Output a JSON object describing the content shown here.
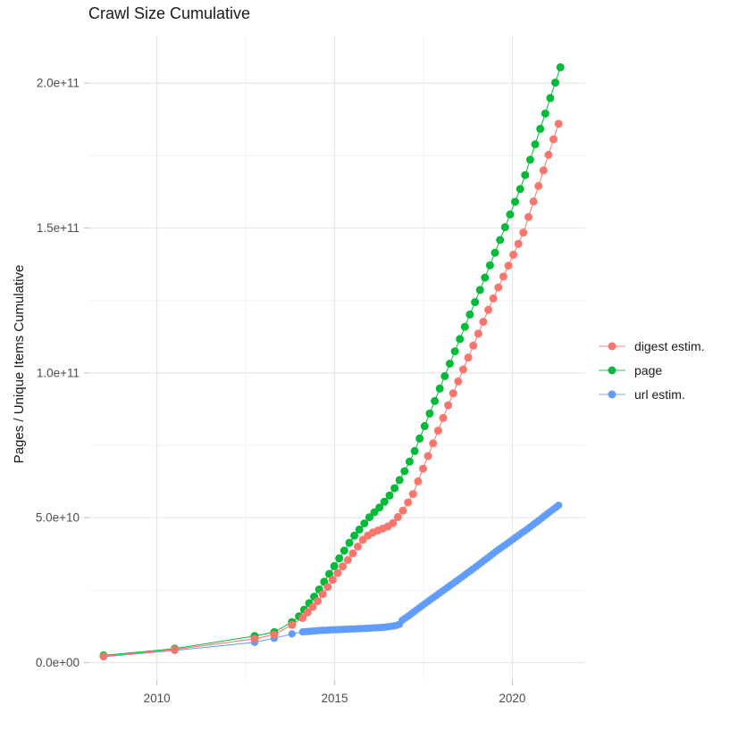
{
  "chart_data": {
    "type": "scatter",
    "title": "Crawl Size Cumulative",
    "xlabel": "",
    "ylabel": "Pages / Unique Items Cumulative",
    "legend_position": "right",
    "grid": {
      "major_color": "#e7e7e7",
      "minor_color": "#f3f3f3",
      "tick_color": "#c9c9c9",
      "minor_x_years": [
        2012.5,
        2017.5
      ],
      "minor_y_values_e9": [
        25,
        75,
        125,
        175
      ]
    },
    "x_ticks": [
      {
        "label": "2010",
        "year": 2010
      },
      {
        "label": "2015",
        "year": 2015
      },
      {
        "label": "2020",
        "year": 2020
      }
    ],
    "y_ticks": [
      {
        "label": "0.0e+00",
        "value_e9": 0
      },
      {
        "label": "5.0e+10",
        "value_e9": 50
      },
      {
        "label": "1.0e+11",
        "value_e9": 100
      },
      {
        "label": "1.5e+11",
        "value_e9": 150
      },
      {
        "label": "2.0e+11",
        "value_e9": 200
      }
    ],
    "x_domain_years": [
      2008.1,
      2022.05
    ],
    "y_domain_e9": [
      -6,
      216.4
    ],
    "series": [
      {
        "name": "url estim.",
        "color": "#619CFF",
        "marker_radius": 4.1,
        "marker_step_years": 0.08,
        "early_points_year_value_e9": [
          [
            2008.5,
            2.0
          ],
          [
            2010.5,
            4.2
          ],
          [
            2012.75,
            7.0
          ],
          [
            2013.3,
            8.4
          ],
          [
            2013.8,
            9.9
          ]
        ],
        "trend_points_year_value_e9": [
          [
            2014.1,
            10.6
          ],
          [
            2014.5,
            11.0
          ],
          [
            2015.0,
            11.35
          ],
          [
            2015.5,
            11.6
          ],
          [
            2016.0,
            11.9
          ],
          [
            2016.4,
            12.2
          ],
          [
            2016.7,
            12.7
          ],
          [
            2016.82,
            13.2
          ],
          [
            2016.9,
            14.6
          ],
          [
            2017.1,
            16.3
          ],
          [
            2017.5,
            20.0
          ],
          [
            2018.0,
            24.4
          ],
          [
            2018.5,
            28.8
          ],
          [
            2019.0,
            33.3
          ],
          [
            2019.5,
            38.0
          ],
          [
            2020.0,
            42.4
          ],
          [
            2020.5,
            46.8
          ],
          [
            2021.0,
            51.5
          ],
          [
            2021.3,
            54.3
          ]
        ]
      },
      {
        "name": "page",
        "color": "#00BA38",
        "marker_radius": 4.5,
        "marker_step_years": 0.14,
        "early_points_year_value_e9": [
          [
            2008.5,
            2.5
          ],
          [
            2010.5,
            4.8
          ],
          [
            2012.75,
            9.2
          ],
          [
            2013.3,
            10.5
          ],
          [
            2013.8,
            14.0
          ]
        ],
        "trend_points_year_value_e9": [
          [
            2014.0,
            16.0
          ],
          [
            2014.5,
            24.0
          ],
          [
            2015.0,
            33.5
          ],
          [
            2015.5,
            43.0
          ],
          [
            2015.8,
            47.5
          ],
          [
            2016.0,
            50.5
          ],
          [
            2016.3,
            54.0
          ],
          [
            2016.6,
            58.5
          ],
          [
            2016.9,
            64.5
          ],
          [
            2017.2,
            71.5
          ],
          [
            2018.2,
            102.0
          ],
          [
            2019.4,
            138.0
          ],
          [
            2020.3,
            166.0
          ],
          [
            2021.35,
            205.5
          ]
        ]
      },
      {
        "name": "digest estim.",
        "color": "#F8766D",
        "marker_radius": 4.5,
        "marker_step_years": 0.14,
        "early_points_year_value_e9": [
          [
            2008.5,
            2.2
          ],
          [
            2010.5,
            4.5
          ],
          [
            2012.75,
            8.2
          ],
          [
            2013.3,
            9.7
          ],
          [
            2013.8,
            13.0
          ]
        ],
        "trend_points_year_value_e9": [
          [
            2014.1,
            15.4
          ],
          [
            2014.5,
            20.8
          ],
          [
            2015.0,
            29.5
          ],
          [
            2015.5,
            37.5
          ],
          [
            2015.8,
            42.5
          ],
          [
            2016.0,
            44.5
          ],
          [
            2016.3,
            46.0
          ],
          [
            2016.6,
            47.5
          ],
          [
            2016.9,
            52.0
          ],
          [
            2017.2,
            58.0
          ],
          [
            2018.2,
            89.0
          ],
          [
            2019.4,
            124.0
          ],
          [
            2020.3,
            148.0
          ],
          [
            2021.3,
            186.0
          ]
        ]
      }
    ],
    "legend_order": [
      "digest estim.",
      "page",
      "url estim."
    ]
  }
}
